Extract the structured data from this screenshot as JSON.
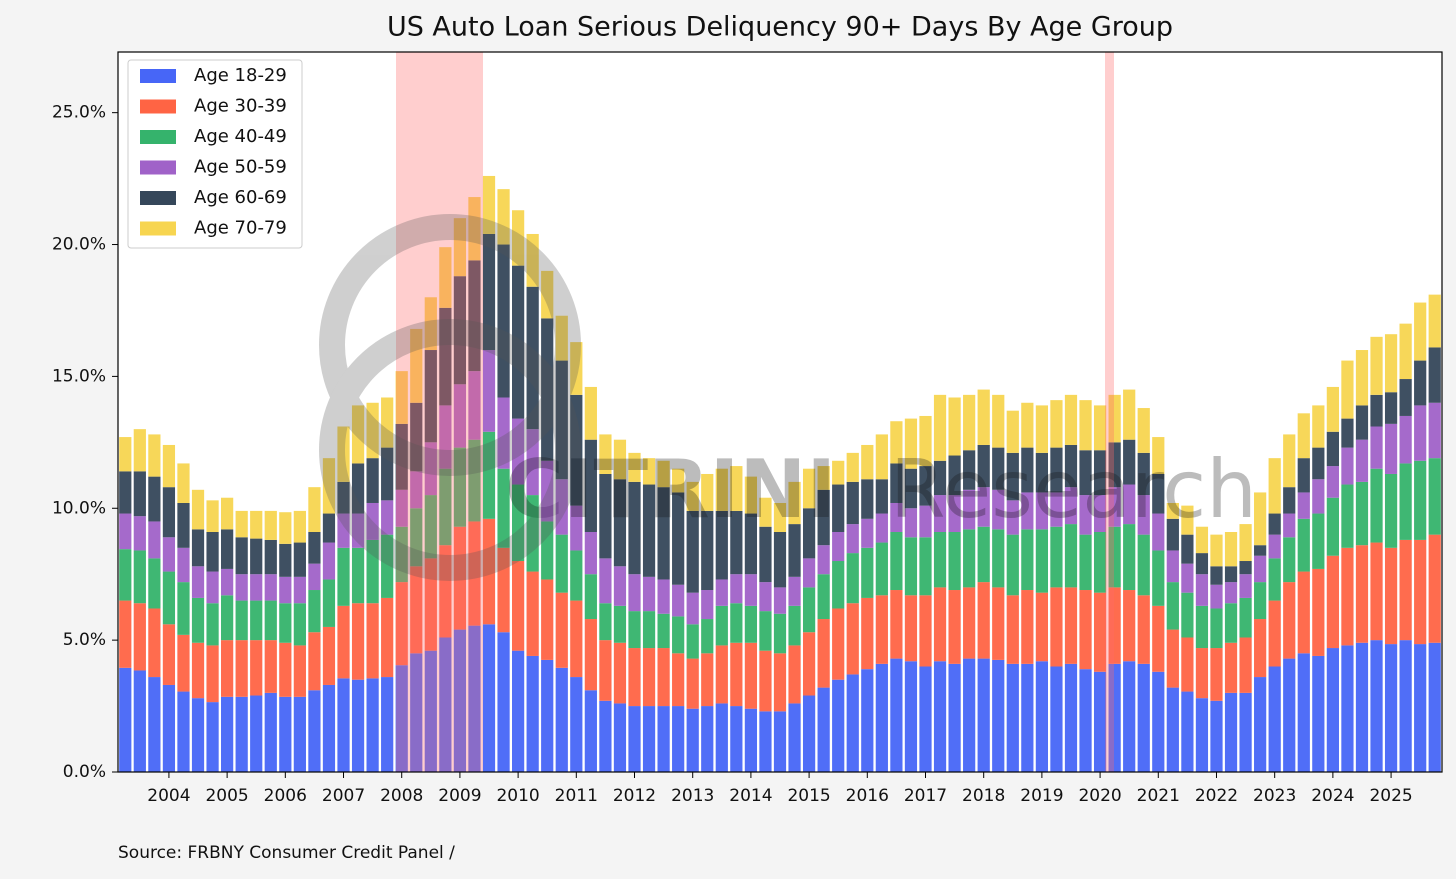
{
  "chart_data": {
    "type": "stacked-bar",
    "title": "US Auto Loan Serious Deliquency 90+ Days By Age Group",
    "source": "Source: FRBNY Consumer Credit Panel /",
    "watermark": {
      "brand": "CITRINI",
      "suffix": "Research"
    },
    "categories": [
      null,
      null,
      null,
      "2004",
      null,
      null,
      null,
      "2005",
      null,
      null,
      null,
      "2006",
      null,
      null,
      null,
      "2007",
      null,
      null,
      null,
      "2008",
      null,
      null,
      null,
      "2009",
      null,
      null,
      null,
      "2010",
      null,
      null,
      null,
      "2011",
      null,
      null,
      null,
      "2012",
      null,
      null,
      null,
      "2013",
      null,
      null,
      null,
      "2014",
      null,
      null,
      null,
      "2015",
      null,
      null,
      null,
      "2016",
      null,
      null,
      null,
      "2017",
      null,
      null,
      null,
      "2018",
      null,
      null,
      null,
      "2019",
      null,
      null,
      null,
      "2020",
      null,
      null,
      null,
      "2021",
      null,
      null,
      null,
      "2022",
      null,
      null,
      null,
      "2023",
      null,
      null,
      null,
      "2024",
      null,
      null,
      null,
      "2025",
      null,
      null,
      null
    ],
    "ylim": [
      0,
      27.3
    ],
    "yticks": [
      {
        "value": 0,
        "label": "0.0%"
      },
      {
        "value": 5,
        "label": "5.0%"
      },
      {
        "value": 10,
        "label": "10.0%"
      },
      {
        "value": 15,
        "label": "15.0%"
      },
      {
        "value": 20,
        "label": "20.0%"
      },
      {
        "value": 25,
        "label": "25.0%"
      }
    ],
    "legend": "upper left",
    "series": [
      {
        "name": "Age 18-29",
        "color": "#4766f7",
        "values": [
          3.95,
          3.85,
          3.6,
          3.3,
          3.05,
          2.8,
          2.65,
          2.85,
          2.85,
          2.9,
          3.0,
          2.85,
          2.85,
          3.1,
          3.3,
          3.55,
          3.5,
          3.55,
          3.6,
          4.05,
          4.5,
          4.6,
          5.1,
          5.4,
          5.55,
          5.6,
          5.3,
          4.6,
          4.4,
          4.25,
          3.95,
          3.6,
          3.1,
          2.7,
          2.6,
          2.5,
          2.5,
          2.5,
          2.5,
          2.4,
          2.5,
          2.6,
          2.5,
          2.4,
          2.3,
          2.3,
          2.6,
          2.9,
          3.2,
          3.5,
          3.7,
          3.9,
          4.1,
          4.3,
          4.2,
          4.0,
          4.2,
          4.1,
          4.3,
          4.3,
          4.25,
          4.1,
          4.1,
          4.2,
          4.0,
          4.1,
          3.9,
          3.8,
          4.1,
          4.2,
          4.1,
          3.8,
          3.2,
          3.05,
          2.8,
          2.7,
          3.0,
          3.0,
          3.6,
          4.0,
          4.3,
          4.5,
          4.4,
          4.7,
          4.8,
          4.9,
          5.0,
          4.85,
          5.0,
          4.85,
          4.9
        ]
      },
      {
        "name": "Age 30-39",
        "color": "#ff6444",
        "values": [
          2.55,
          2.55,
          2.6,
          2.3,
          2.15,
          2.1,
          2.15,
          2.15,
          2.15,
          2.1,
          2.0,
          2.05,
          1.95,
          2.2,
          2.2,
          2.75,
          2.9,
          2.85,
          3.0,
          3.15,
          3.3,
          3.5,
          3.5,
          3.9,
          3.95,
          4.0,
          3.2,
          3.4,
          3.2,
          3.05,
          2.85,
          2.9,
          2.7,
          2.3,
          2.3,
          2.2,
          2.2,
          2.2,
          2.0,
          1.9,
          2.0,
          2.2,
          2.4,
          2.5,
          2.3,
          2.2,
          2.2,
          2.4,
          2.6,
          2.7,
          2.7,
          2.7,
          2.6,
          2.6,
          2.5,
          2.7,
          2.8,
          2.8,
          2.7,
          2.9,
          2.75,
          2.6,
          2.8,
          2.6,
          3.0,
          2.9,
          3.0,
          3.0,
          2.9,
          2.7,
          2.6,
          2.5,
          2.2,
          2.05,
          1.9,
          2.0,
          1.9,
          2.1,
          2.2,
          2.5,
          2.9,
          3.1,
          3.3,
          3.5,
          3.7,
          3.7,
          3.7,
          3.65,
          3.8,
          3.95,
          4.1
        ]
      },
      {
        "name": "Age 40-49",
        "color": "#35b36c",
        "values": [
          1.95,
          2.0,
          1.9,
          2.0,
          2.0,
          1.7,
          1.6,
          1.7,
          1.5,
          1.5,
          1.5,
          1.5,
          1.6,
          1.6,
          1.8,
          2.2,
          2.1,
          2.4,
          2.4,
          2.1,
          2.2,
          2.4,
          2.9,
          3.0,
          3.1,
          3.3,
          3.0,
          2.9,
          2.9,
          2.2,
          2.2,
          1.9,
          1.7,
          1.4,
          1.4,
          1.4,
          1.4,
          1.3,
          1.4,
          1.3,
          1.3,
          1.5,
          1.5,
          1.4,
          1.5,
          1.5,
          1.5,
          1.7,
          1.7,
          1.8,
          1.9,
          1.9,
          2.0,
          2.2,
          2.2,
          2.2,
          2.1,
          2.2,
          2.2,
          2.1,
          2.2,
          2.3,
          2.3,
          2.4,
          2.3,
          2.4,
          2.1,
          2.3,
          2.3,
          2.5,
          2.3,
          2.1,
          1.8,
          1.7,
          1.6,
          1.5,
          1.5,
          1.5,
          1.4,
          1.6,
          1.7,
          2.0,
          2.1,
          2.2,
          2.4,
          2.4,
          2.8,
          2.8,
          2.9,
          3.0,
          2.9
        ]
      },
      {
        "name": "Age 50-59",
        "color": "#a062c8",
        "values": [
          1.35,
          1.3,
          1.4,
          1.3,
          1.3,
          1.2,
          1.2,
          1.0,
          1.0,
          1.0,
          1.0,
          1.0,
          1.0,
          1.0,
          1.4,
          1.3,
          1.3,
          1.4,
          1.3,
          1.4,
          1.4,
          2.0,
          2.4,
          2.4,
          2.6,
          3.1,
          2.7,
          2.5,
          2.5,
          2.3,
          2.1,
          1.7,
          1.6,
          1.7,
          1.5,
          1.4,
          1.3,
          1.3,
          1.2,
          1.2,
          1.1,
          1.0,
          1.1,
          1.2,
          1.1,
          1.0,
          1.1,
          1.1,
          1.1,
          1.1,
          1.1,
          1.1,
          1.1,
          1.1,
          1.1,
          1.2,
          1.4,
          1.4,
          1.5,
          1.5,
          1.5,
          1.3,
          1.4,
          1.4,
          1.3,
          1.4,
          1.5,
          1.4,
          1.5,
          1.5,
          1.5,
          1.4,
          1.2,
          1.1,
          1.2,
          0.9,
          0.8,
          0.9,
          1.0,
          0.9,
          0.9,
          1.0,
          1.3,
          1.2,
          1.4,
          1.6,
          1.6,
          1.9,
          1.8,
          2.1,
          2.1
        ]
      },
      {
        "name": "Age 60-69",
        "color": "#35475a",
        "values": [
          1.6,
          1.7,
          1.7,
          1.9,
          1.7,
          1.4,
          1.5,
          1.5,
          1.4,
          1.35,
          1.3,
          1.25,
          1.3,
          1.2,
          1.1,
          1.2,
          1.9,
          1.7,
          2.0,
          2.5,
          2.6,
          3.5,
          3.7,
          4.1,
          4.2,
          4.4,
          5.8,
          5.8,
          5.4,
          5.4,
          4.5,
          4.2,
          3.5,
          3.2,
          3.3,
          3.5,
          3.5,
          3.5,
          3.5,
          3.1,
          3.0,
          2.6,
          2.4,
          2.3,
          2.1,
          2.1,
          2.0,
          1.9,
          2.1,
          1.8,
          1.6,
          1.5,
          1.3,
          1.5,
          1.5,
          1.5,
          1.3,
          1.5,
          1.5,
          1.6,
          1.6,
          1.8,
          1.7,
          1.5,
          1.7,
          1.6,
          1.7,
          1.7,
          1.7,
          1.7,
          1.6,
          1.5,
          1.2,
          1.1,
          0.8,
          0.7,
          0.6,
          0.5,
          0.4,
          0.8,
          1.0,
          1.3,
          1.2,
          1.3,
          1.1,
          1.3,
          1.2,
          1.2,
          1.4,
          1.7,
          2.1
        ]
      },
      {
        "name": "Age 70-79",
        "color": "#f7d550",
        "values": [
          1.3,
          1.6,
          1.6,
          1.6,
          1.5,
          1.5,
          1.2,
          1.2,
          1.0,
          1.05,
          1.1,
          1.2,
          1.2,
          1.7,
          2.1,
          2.1,
          2.2,
          2.1,
          1.9,
          2.0,
          2.8,
          2.0,
          2.3,
          2.2,
          2.4,
          2.2,
          2.1,
          2.1,
          2.0,
          1.8,
          1.7,
          2.0,
          2.0,
          1.5,
          1.5,
          1.1,
          1.0,
          1.0,
          0.9,
          1.1,
          1.4,
          1.6,
          1.7,
          1.4,
          1.1,
          1.1,
          1.6,
          1.5,
          0.9,
          0.9,
          1.1,
          1.3,
          1.7,
          1.6,
          1.9,
          1.9,
          2.5,
          2.2,
          2.1,
          2.1,
          2.0,
          1.6,
          1.7,
          1.8,
          1.8,
          1.9,
          1.9,
          1.7,
          1.8,
          1.9,
          1.7,
          1.4,
          0.6,
          1.1,
          1.0,
          1.2,
          1.3,
          1.4,
          2.0,
          2.1,
          2.0,
          1.7,
          1.6,
          1.7,
          2.2,
          2.1,
          2.2,
          2.2,
          2.1,
          2.2,
          2.0
        ]
      }
    ]
  }
}
